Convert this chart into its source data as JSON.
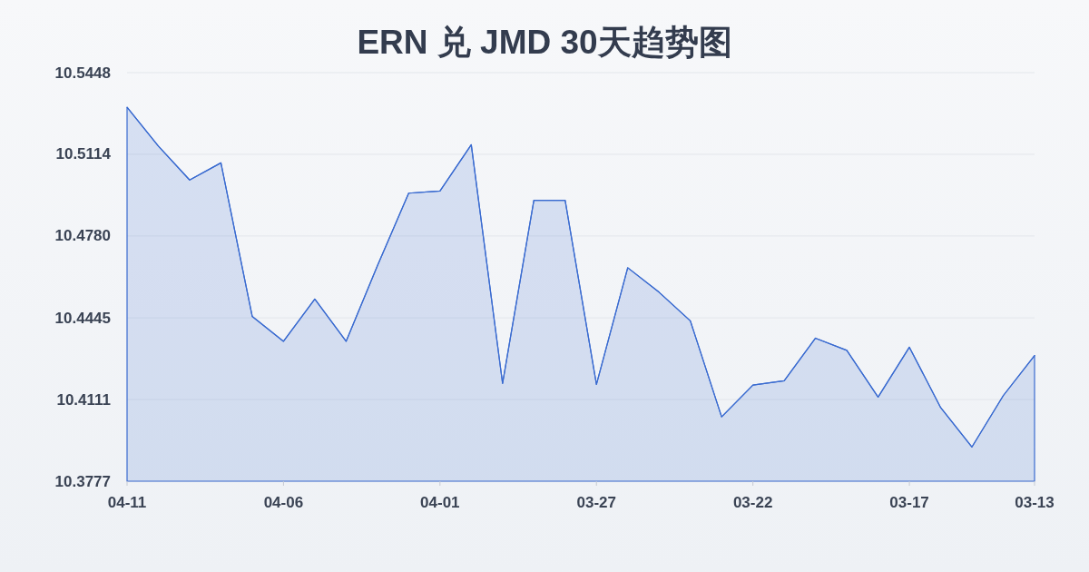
{
  "chart_data": {
    "type": "area",
    "title": "ERN 兑 JMD 30天趋势图",
    "categories": [
      "04-11",
      null,
      null,
      null,
      null,
      "04-06",
      null,
      null,
      null,
      null,
      "04-01",
      null,
      null,
      null,
      null,
      "03-27",
      null,
      null,
      null,
      null,
      "03-22",
      null,
      null,
      null,
      null,
      "03-17",
      null,
      null,
      null,
      "03-13"
    ],
    "color": "#3a6bd0",
    "values": [
      10.5306,
      10.5148,
      10.5009,
      10.5079,
      10.4451,
      10.4349,
      10.4522,
      10.4349,
      10.4658,
      10.4955,
      10.4964,
      10.5153,
      10.4177,
      10.4926,
      10.4926,
      10.4173,
      10.465,
      10.455,
      10.4433,
      10.404,
      10.417,
      10.4188,
      10.4362,
      10.4312,
      10.4121,
      10.4325,
      10.4078,
      10.3917,
      10.4127,
      10.4291
    ],
    "ylim": [
      10.3777,
      10.5448
    ],
    "yticks": [
      10.3777,
      10.4111,
      10.4445,
      {
        "value": 10.478,
        "label": "10.4780"
      },
      10.5114,
      10.5448
    ],
    "grid": "y"
  }
}
